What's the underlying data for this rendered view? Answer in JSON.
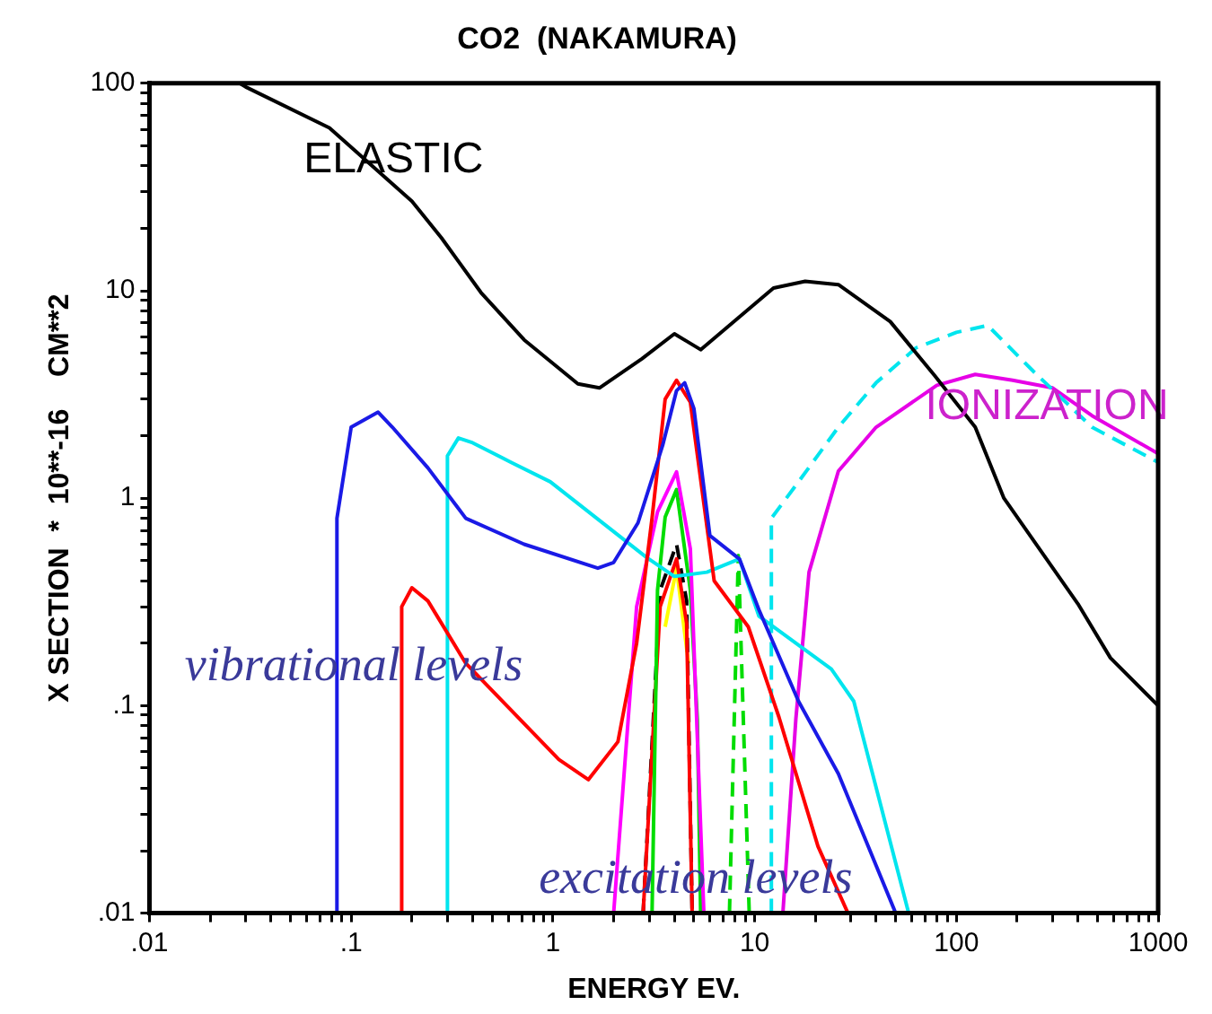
{
  "chart_data": {
    "type": "line",
    "title": "CO2  (NAKAMURA)",
    "xlabel": "ENERGY EV.",
    "ylabel": "X SECTION  *  10**-16    CM**2",
    "log": "xy",
    "grid": false,
    "legend": false,
    "marker": "none",
    "xlim": [
      0.01,
      1000
    ],
    "ylim": [
      0.01,
      100
    ],
    "xticks": [
      {
        "value": 0.01,
        "label": ".01"
      },
      {
        "value": 0.02,
        "label": null
      },
      {
        "value": 0.03,
        "label": null
      },
      {
        "value": 0.04,
        "label": null
      },
      {
        "value": 0.05,
        "label": null
      },
      {
        "value": 0.06,
        "label": null
      },
      {
        "value": 0.07,
        "label": null
      },
      {
        "value": 0.08,
        "label": null
      },
      {
        "value": 0.09,
        "label": null
      },
      {
        "value": 0.1,
        "label": ".1"
      },
      {
        "value": 0.2,
        "label": null
      },
      {
        "value": 0.3,
        "label": null
      },
      {
        "value": 0.4,
        "label": null
      },
      {
        "value": 0.5,
        "label": null
      },
      {
        "value": 0.6,
        "label": null
      },
      {
        "value": 0.7,
        "label": null
      },
      {
        "value": 0.8,
        "label": null
      },
      {
        "value": 0.9,
        "label": null
      },
      1,
      {
        "value": 2,
        "label": null
      },
      {
        "value": 3,
        "label": null
      },
      {
        "value": 4,
        "label": null
      },
      {
        "value": 5,
        "label": null
      },
      {
        "value": 6,
        "label": null
      },
      {
        "value": 7,
        "label": null
      },
      {
        "value": 8,
        "label": null
      },
      {
        "value": 9,
        "label": null
      },
      10,
      {
        "value": 20,
        "label": null
      },
      {
        "value": 30,
        "label": null
      },
      {
        "value": 40,
        "label": null
      },
      {
        "value": 50,
        "label": null
      },
      {
        "value": 60,
        "label": null
      },
      {
        "value": 70,
        "label": null
      },
      {
        "value": 80,
        "label": null
      },
      {
        "value": 90,
        "label": null
      },
      100,
      {
        "value": 200,
        "label": null
      },
      {
        "value": 300,
        "label": null
      },
      {
        "value": 400,
        "label": null
      },
      {
        "value": 500,
        "label": null
      },
      {
        "value": 600,
        "label": null
      },
      {
        "value": 700,
        "label": null
      },
      {
        "value": 800,
        "label": null
      },
      {
        "value": 900,
        "label": null
      },
      1000
    ],
    "yticks": [
      {
        "value": 0.01,
        "label": ".01"
      },
      {
        "value": 0.02,
        "label": null
      },
      {
        "value": 0.03,
        "label": null
      },
      {
        "value": 0.04,
        "label": null
      },
      {
        "value": 0.05,
        "label": null
      },
      {
        "value": 0.06,
        "label": null
      },
      {
        "value": 0.07,
        "label": null
      },
      {
        "value": 0.08,
        "label": null
      },
      {
        "value": 0.09,
        "label": null
      },
      {
        "value": 0.1,
        "label": ".1"
      },
      {
        "value": 0.2,
        "label": null
      },
      {
        "value": 0.3,
        "label": null
      },
      {
        "value": 0.4,
        "label": null
      },
      {
        "value": 0.5,
        "label": null
      },
      {
        "value": 0.6,
        "label": null
      },
      {
        "value": 0.7,
        "label": null
      },
      {
        "value": 0.8,
        "label": null
      },
      {
        "value": 0.9,
        "label": null
      },
      1,
      {
        "value": 2,
        "label": null
      },
      {
        "value": 3,
        "label": null
      },
      {
        "value": 4,
        "label": null
      },
      {
        "value": 5,
        "label": null
      },
      {
        "value": 6,
        "label": null
      },
      {
        "value": 7,
        "label": null
      },
      {
        "value": 8,
        "label": null
      },
      {
        "value": 9,
        "label": null
      },
      10,
      {
        "value": 20,
        "label": null
      },
      {
        "value": 30,
        "label": null
      },
      {
        "value": 40,
        "label": null
      },
      {
        "value": 50,
        "label": null
      },
      {
        "value": 60,
        "label": null
      },
      {
        "value": 70,
        "label": null
      },
      {
        "value": 80,
        "label": null
      },
      {
        "value": 90,
        "label": null
      },
      100
    ],
    "series": [
      {
        "color": "#000000",
        "x": [
          0.028,
          0.03,
          0.078,
          0.2,
          0.28,
          0.44,
          0.72,
          1.33,
          1.7,
          2.76,
          4,
          5.4,
          12.4,
          17.8,
          26,
          47,
          78,
          124,
          172,
          400,
          580,
          1000
        ],
        "values": [
          100,
          96,
          61,
          27,
          18,
          9.8,
          5.8,
          3.56,
          3.4,
          4.7,
          6.2,
          5.2,
          10.3,
          11.1,
          10.7,
          7.1,
          3.9,
          2.2,
          1.0,
          0.31,
          0.17,
          0.1
        ]
      },
      {
        "color": "#1a1ae6",
        "x": [
          0.085,
          0.085,
          0.1,
          0.136,
          0.16,
          0.24,
          0.37,
          0.72,
          1.67,
          2.0,
          2.64,
          3.5,
          4.1,
          4.5,
          5.0,
          6.0,
          8.4,
          10.5,
          16.5,
          26,
          50
        ],
        "values": [
          0.01,
          0.8,
          2.2,
          2.6,
          2.2,
          1.4,
          0.8,
          0.6,
          0.46,
          0.49,
          0.76,
          1.8,
          3.3,
          3.6,
          2.7,
          0.66,
          0.51,
          0.29,
          0.105,
          0.047,
          0.01
        ]
      },
      {
        "color": "#ff0000",
        "x": [
          0.178,
          0.178,
          0.2,
          0.24,
          0.37,
          1.07,
          1.5,
          2.1,
          2.6,
          3.1,
          3.6,
          4.1,
          4.8,
          6.3,
          9.3,
          13.2,
          20.6,
          29
        ],
        "values": [
          0.01,
          0.3,
          0.37,
          0.32,
          0.16,
          0.055,
          0.044,
          0.067,
          0.2,
          0.8,
          3.0,
          3.7,
          2.9,
          0.4,
          0.24,
          0.088,
          0.021,
          0.01
        ]
      },
      {
        "color": "#00e5ee",
        "x": [
          0.3,
          0.3,
          0.34,
          0.4,
          0.62,
          0.97,
          2.9,
          4.0,
          5.8,
          8.4,
          10.5,
          24,
          31,
          58
        ],
        "values": [
          0.01,
          1.6,
          1.95,
          1.85,
          1.49,
          1.2,
          0.52,
          0.42,
          0.44,
          0.51,
          0.27,
          0.15,
          0.105,
          0.01
        ]
      },
      {
        "color": "#00e5ee",
        "line_style": "dashed",
        "x": [
          12.1,
          12.1,
          16.5,
          26,
          40,
          63,
          100,
          143,
          240,
          470,
          1000
        ],
        "values": [
          0.01,
          0.8,
          1.2,
          2.2,
          3.6,
          5.3,
          6.3,
          6.8,
          4.1,
          2.2,
          1.49
        ]
      },
      {
        "color": "#e600e6",
        "x": [
          13.8,
          16,
          18.6,
          26,
          40,
          80,
          124,
          190,
          300,
          470,
          1000
        ],
        "values": [
          0.01,
          0.086,
          0.44,
          1.35,
          2.2,
          3.5,
          3.95,
          3.7,
          3.4,
          2.5,
          1.64
        ]
      },
      {
        "color": "#ff00ff",
        "x": [
          2.0,
          2.6,
          3.3,
          4.1,
          4.8,
          5.6
        ],
        "values": [
          0.01,
          0.3,
          0.86,
          1.34,
          0.57,
          0.01
        ]
      },
      {
        "color": "#00dd00",
        "x": [
          3.1,
          3.3,
          3.6,
          4.1,
          4.8,
          5.2,
          5.4
        ],
        "values": [
          0.01,
          0.36,
          0.81,
          1.1,
          0.36,
          0.085,
          0.01
        ]
      },
      {
        "color": "#00dd00",
        "line_style": "dashed",
        "x": [
          7.5,
          8.3,
          9.4
        ],
        "values": [
          0.01,
          0.53,
          0.01
        ]
      },
      {
        "color": "#ff0000",
        "x": [
          2.8,
          3.4,
          4.1,
          4.6,
          4.9
        ],
        "values": [
          0.01,
          0.3,
          0.51,
          0.25,
          0.01
        ]
      },
      {
        "color": "#000000",
        "line_style": "dashed",
        "x": [
          2.8,
          3.4,
          4.1,
          4.6,
          4.9
        ],
        "values": [
          0.01,
          0.36,
          0.6,
          0.32,
          0.01
        ]
      },
      {
        "color": "#ffff00",
        "x": [
          3.6,
          4.1,
          4.7
        ],
        "values": [
          0.24,
          0.46,
          0.16
        ]
      }
    ],
    "annotations": [
      "ELASTIC",
      "IONIZATION",
      "vibrational levels",
      "excitation levels"
    ]
  }
}
